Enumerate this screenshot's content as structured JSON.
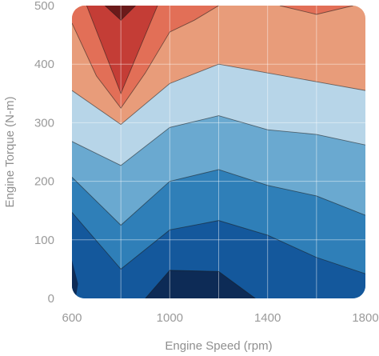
{
  "chart_data": {
    "type": "contour",
    "title": "",
    "xlabel": "Engine Speed (rpm)",
    "ylabel": "Engine Torque (N-m)",
    "xlim": [
      600,
      1800
    ],
    "ylim": [
      0,
      500
    ],
    "x_ticks": [
      600,
      1000,
      1400,
      1800
    ],
    "y_ticks": [
      0,
      100,
      200,
      300,
      400,
      500
    ],
    "grid": true,
    "x_grid": [
      800,
      1000,
      1200,
      1400,
      1600
    ],
    "y_grid": [
      100,
      200,
      300,
      400
    ],
    "sample_x": [
      600,
      800,
      1000,
      1200,
      1400,
      1600,
      1800
    ],
    "level_colors": [
      "#0d2b56",
      "#14589c",
      "#2f7fb8",
      "#6aa9d0",
      "#b7d5e8",
      "#e89c7a",
      "#e26f57",
      "#c43d36",
      "#a32a2a",
      "#6b1a1a"
    ],
    "contour_levels": [
      {
        "x": [
          600,
          800,
          1000,
          1200,
          1400,
          1600,
          1800
        ],
        "y": [
          0,
          0,
          0,
          0,
          0,
          0,
          0
        ]
      },
      {
        "x": [
          900,
          1000,
          1200,
          1350
        ],
        "y": [
          0,
          48,
          46,
          0
        ]
      },
      {
        "x": [
          600,
          800,
          1000,
          1200,
          1400,
          1600,
          1800
        ],
        "y": [
          147,
          50,
          117,
          133,
          108,
          70,
          42
        ]
      },
      {
        "x": [
          600,
          800,
          1000,
          1200,
          1400,
          1600,
          1800
        ],
        "y": [
          207,
          125,
          200,
          220,
          193,
          175,
          142
        ]
      },
      {
        "x": [
          600,
          800,
          1000,
          1200,
          1400,
          1600,
          1800
        ],
        "y": [
          268,
          227,
          292,
          312,
          288,
          280,
          262
        ]
      },
      {
        "x": [
          600,
          800,
          1000,
          1200,
          1400,
          1600,
          1800
        ],
        "y": [
          355,
          297,
          367,
          400,
          385,
          370,
          355
        ]
      },
      {
        "x": [
          600,
          700,
          800,
          900,
          1000,
          1100,
          1200
        ],
        "y": [
          470,
          380,
          325,
          385,
          455,
          475,
          500
        ]
      },
      {
        "x": [
          660,
          800,
          950
        ],
        "y": [
          500,
          350,
          500
        ]
      },
      {
        "x": [
          735,
          800,
          860
        ],
        "y": [
          500,
          475,
          500
        ]
      }
    ],
    "top_right_region": {
      "x": [
        1450,
        1600,
        1750
      ],
      "y": [
        500,
        485,
        500
      ]
    }
  }
}
